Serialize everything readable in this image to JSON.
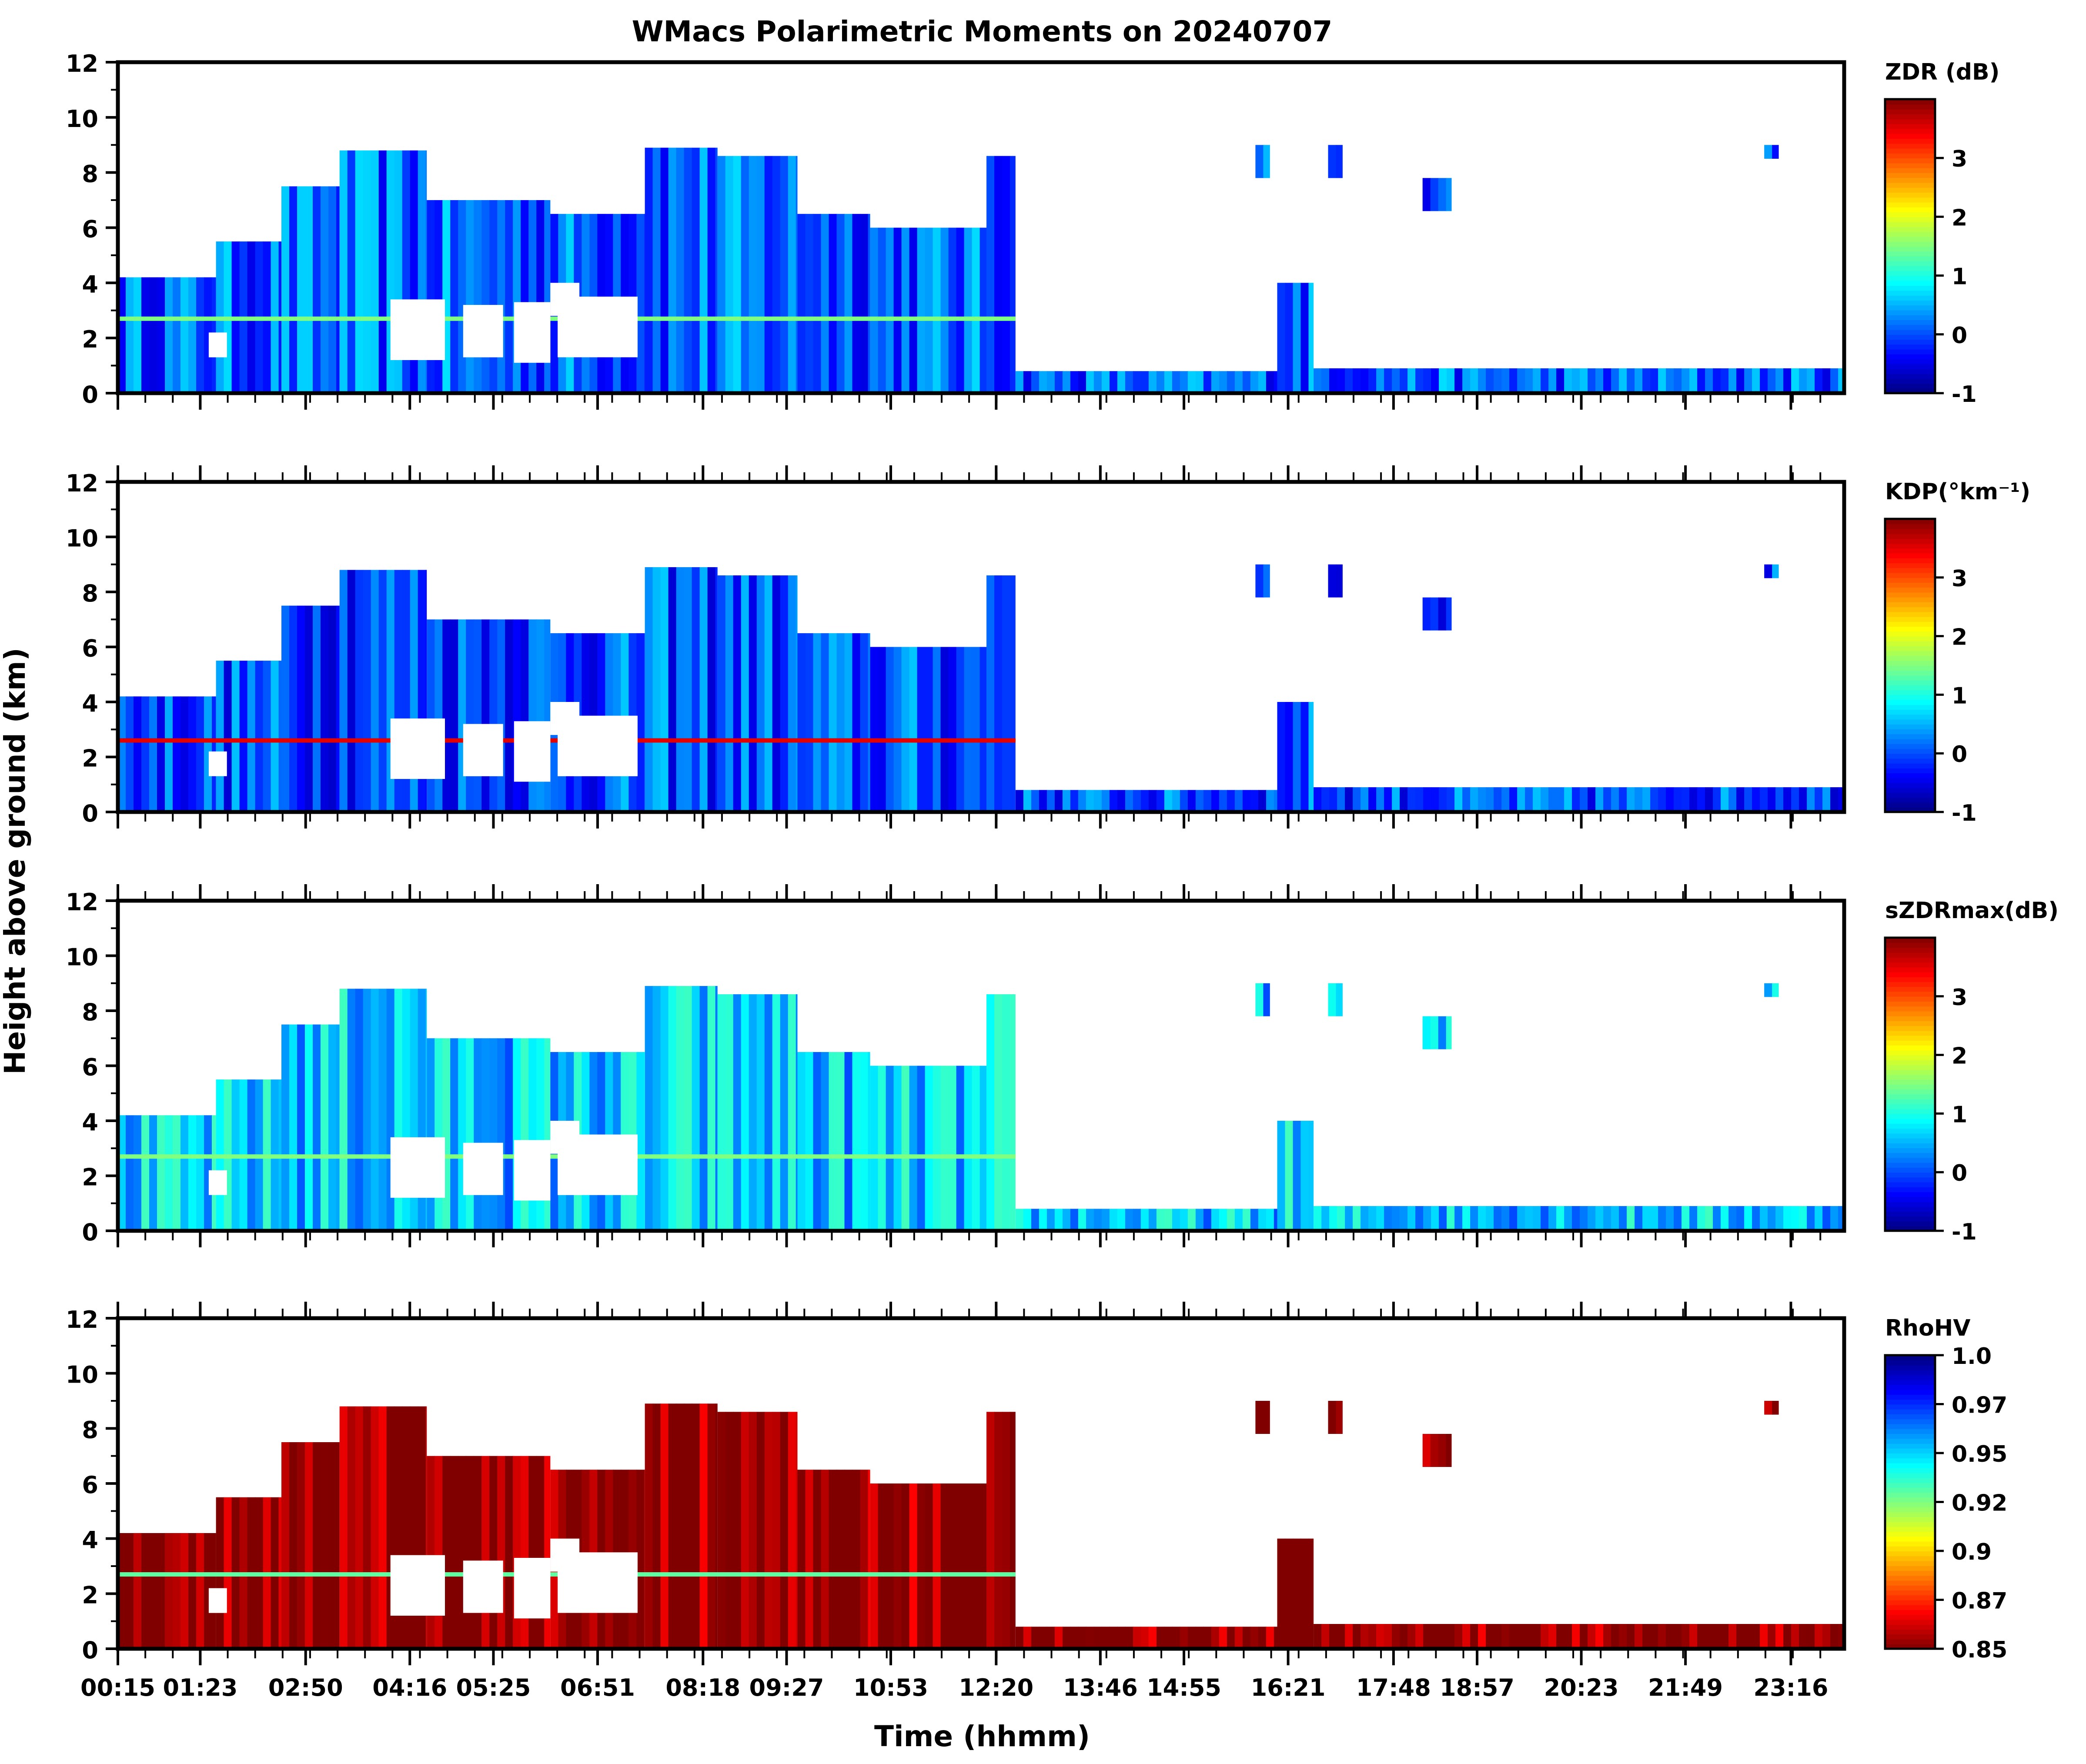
{
  "chart_data": {
    "type": "heatmap",
    "title": "WMacs Polarimetric Moments on 20240707",
    "xlabel": "Time (hhmm)",
    "ylabel": "Height above ground (km)",
    "x_ticks": [
      "00:15",
      "01:23",
      "02:50",
      "04:16",
      "05:25",
      "06:51",
      "08:18",
      "09:27",
      "10:53",
      "12:20",
      "13:46",
      "14:55",
      "16:21",
      "17:48",
      "18:57",
      "20:23",
      "21:49",
      "23:16"
    ],
    "x_range_hours": [
      0.25,
      24.0
    ],
    "ylim": [
      0,
      12
    ],
    "y_ticks": [
      0,
      2,
      4,
      6,
      8,
      10,
      12
    ],
    "panels": [
      {
        "name": "ZDR",
        "colorbar_label": "ZDR (dB)",
        "colormap": "jet",
        "range": [
          -1,
          4
        ],
        "colorbar_ticks": [
          "-1",
          "0",
          "1",
          "2",
          "3"
        ],
        "colorbar_tick_values": [
          -1,
          0,
          1,
          2,
          3
        ],
        "background_value": 0.1,
        "melting_layer_km": 2.7
      },
      {
        "name": "KDP",
        "colorbar_label": "KDP(°km⁻¹)",
        "colormap": "jet",
        "range": [
          -1,
          4
        ],
        "colorbar_ticks": [
          "-1",
          "0",
          "1",
          "2",
          "3"
        ],
        "colorbar_tick_values": [
          -1,
          0,
          1,
          2,
          3
        ],
        "background_value": 0.0,
        "melting_layer_km": 2.6
      },
      {
        "name": "sZDRmax",
        "colorbar_label": "sZDRmax(dB)",
        "colormap": "jet",
        "range": [
          -1,
          4
        ],
        "colorbar_ticks": [
          "-1",
          "0",
          "1",
          "2",
          "3"
        ],
        "colorbar_tick_values": [
          -1,
          0,
          1,
          2,
          3
        ],
        "background_value": 0.6,
        "melting_layer_km": 2.7
      },
      {
        "name": "RhoHV",
        "colorbar_label": "RhoHV",
        "colormap": "jet_r",
        "range": [
          0.85,
          1.0
        ],
        "colorbar_ticks": [
          "0.85",
          "0.87",
          "0.9",
          "0.92",
          "0.95",
          "0.97",
          "1.0"
        ],
        "colorbar_tick_values": [
          0.85,
          0.875,
          0.9,
          0.925,
          0.95,
          0.975,
          1.0
        ],
        "background_value": 0.85,
        "melting_layer_km": 2.7
      }
    ],
    "echo_regions": [
      {
        "start": 0.25,
        "end": 1.6,
        "top_km": 4.2,
        "base_km": 0.0
      },
      {
        "start": 1.6,
        "end": 2.5,
        "top_km": 5.5,
        "base_km": 0.0
      },
      {
        "start": 2.5,
        "end": 3.3,
        "top_km": 7.5,
        "base_km": 0.0
      },
      {
        "start": 3.3,
        "end": 4.5,
        "top_km": 8.8,
        "base_km": 0.0
      },
      {
        "start": 4.5,
        "end": 6.2,
        "top_km": 7.0,
        "base_km": 0.0
      },
      {
        "start": 6.2,
        "end": 7.5,
        "top_km": 6.5,
        "base_km": 0.0
      },
      {
        "start": 7.5,
        "end": 8.5,
        "top_km": 8.9,
        "base_km": 0.0
      },
      {
        "start": 8.5,
        "end": 9.6,
        "top_km": 8.6,
        "base_km": 0.0
      },
      {
        "start": 9.6,
        "end": 10.6,
        "top_km": 6.5,
        "base_km": 0.0
      },
      {
        "start": 10.6,
        "end": 12.2,
        "top_km": 6.0,
        "base_km": 0.0
      },
      {
        "start": 12.2,
        "end": 12.6,
        "top_km": 8.6,
        "base_km": 0.0
      },
      {
        "start": 12.6,
        "end": 16.2,
        "top_km": 0.8,
        "base_km": 0.0
      },
      {
        "start": 16.2,
        "end": 16.7,
        "top_km": 4.0,
        "base_km": 0.0
      },
      {
        "start": 16.7,
        "end": 24.0,
        "top_km": 0.9,
        "base_km": 0.0
      },
      {
        "start": 15.9,
        "end": 16.1,
        "top_km": 9.0,
        "base_km": 7.8
      },
      {
        "start": 16.9,
        "end": 17.1,
        "top_km": 9.0,
        "base_km": 7.8
      },
      {
        "start": 18.2,
        "end": 18.6,
        "top_km": 7.8,
        "base_km": 6.6
      },
      {
        "start": 22.9,
        "end": 23.1,
        "top_km": 9.0,
        "base_km": 8.5
      }
    ],
    "voids": [
      {
        "start": 1.5,
        "end": 1.75,
        "top_km": 2.2,
        "base_km": 1.3
      },
      {
        "start": 4.0,
        "end": 4.75,
        "top_km": 3.4,
        "base_km": 1.2
      },
      {
        "start": 5.0,
        "end": 5.55,
        "top_km": 3.2,
        "base_km": 1.3
      },
      {
        "start": 5.7,
        "end": 6.2,
        "top_km": 3.3,
        "base_km": 1.1
      },
      {
        "start": 6.3,
        "end": 7.4,
        "top_km": 3.5,
        "base_km": 1.3
      },
      {
        "start": 6.2,
        "end": 6.6,
        "top_km": 4.0,
        "base_km": 2.8
      }
    ]
  }
}
